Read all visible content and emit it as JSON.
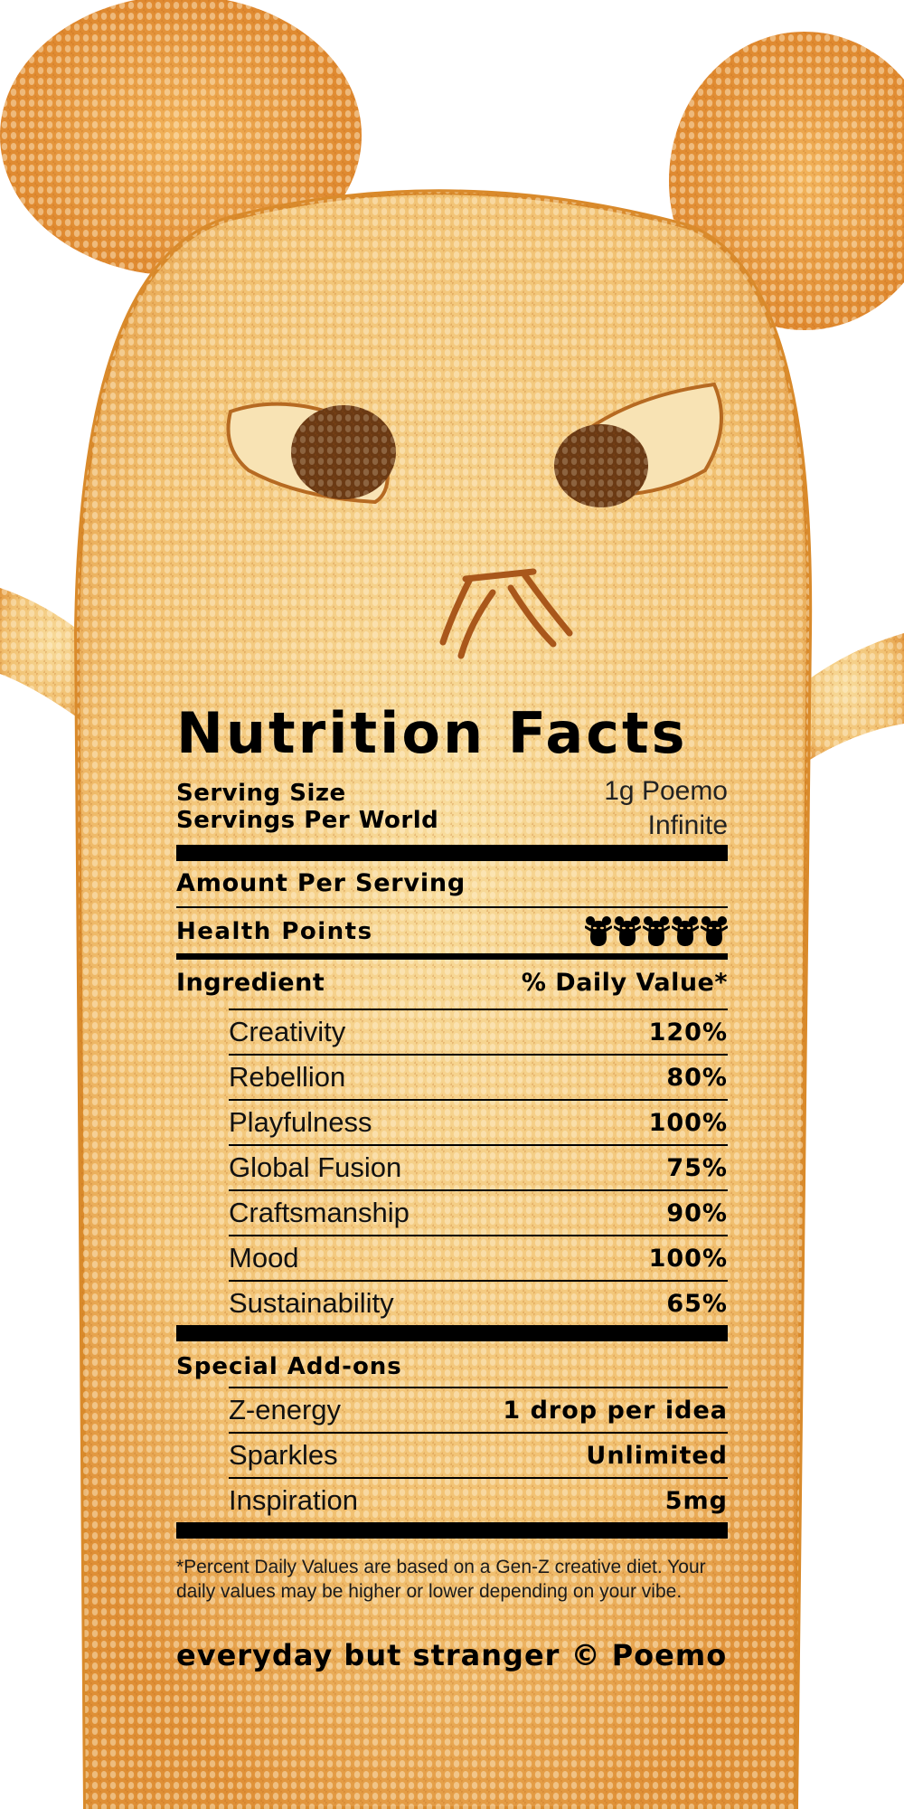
{
  "label": {
    "title": "Nutrition Facts",
    "serving_size_label": "Serving Size",
    "serving_size_value": "1g Poemo",
    "servings_label": "Servings Per World",
    "servings_value": "Infinite",
    "amount_per_serving": "Amount Per Serving",
    "health_points_label": "Health Points",
    "health_points_icons": 5,
    "ingredient_header": "Ingredient",
    "daily_value_header": "% Daily Value*",
    "ingredients": [
      {
        "name": "Creativity",
        "value": "120%"
      },
      {
        "name": "Rebellion",
        "value": "80%"
      },
      {
        "name": "Playfulness",
        "value": "100%"
      },
      {
        "name": "Global Fusion",
        "value": "75%"
      },
      {
        "name": "Craftsmanship",
        "value": "90%"
      },
      {
        "name": "Mood",
        "value": "100%"
      },
      {
        "name": "Sustainability",
        "value": "65%"
      }
    ],
    "addons_title": "Special Add-ons",
    "addons": [
      {
        "name": "Z-energy",
        "value": "1 drop per idea"
      },
      {
        "name": "Sparkles",
        "value": "Unlimited"
      },
      {
        "name": "Inspiration",
        "value": "5mg"
      }
    ],
    "footnote": "*Percent Daily Values are based on a Gen-Z creative diet. Your daily values may be higher or lower depending on your vibe.",
    "tagline": "everyday but stranger © Poemo"
  },
  "colors": {
    "body_fill": "#f3c77e",
    "body_edge": "#d98a2b",
    "ear_fill": "#eea043",
    "text": "#000000",
    "background": "#ffffff"
  },
  "icons": {
    "health_point": "bear-silhouette-icon"
  }
}
